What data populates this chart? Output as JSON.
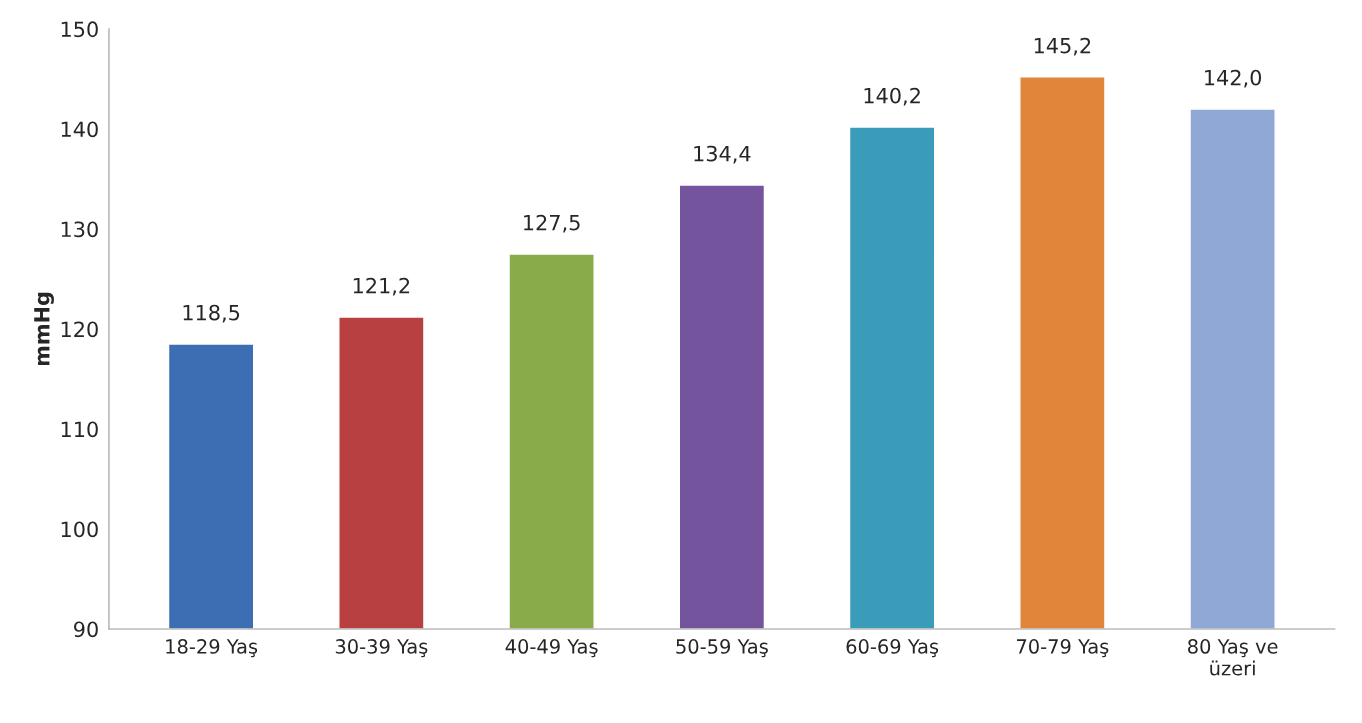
{
  "chart_data": {
    "type": "bar",
    "ylabel": "mmHg",
    "categories": [
      "18-29 Yaş",
      "30-39 Yaş",
      "40-49 Yaş",
      "50-59 Yaş",
      "60-69 Yaş",
      "70-79 Yaş",
      "80 Yaş ve\nüzeri"
    ],
    "values": [
      118.5,
      121.2,
      127.5,
      134.4,
      140.2,
      145.2,
      142.0
    ],
    "value_labels": [
      "118,5",
      "121,2",
      "127,5",
      "134,4",
      "140,2",
      "145,2",
      "142,0"
    ],
    "colors": [
      "#3d6eb4",
      "#b94040",
      "#8aab4a",
      "#74549c",
      "#3a9cb8",
      "#e0853a",
      "#8fa8d6"
    ],
    "ylim": [
      90,
      150
    ],
    "yticks": [
      90,
      100,
      110,
      120,
      130,
      140,
      150
    ],
    "grid": false
  }
}
